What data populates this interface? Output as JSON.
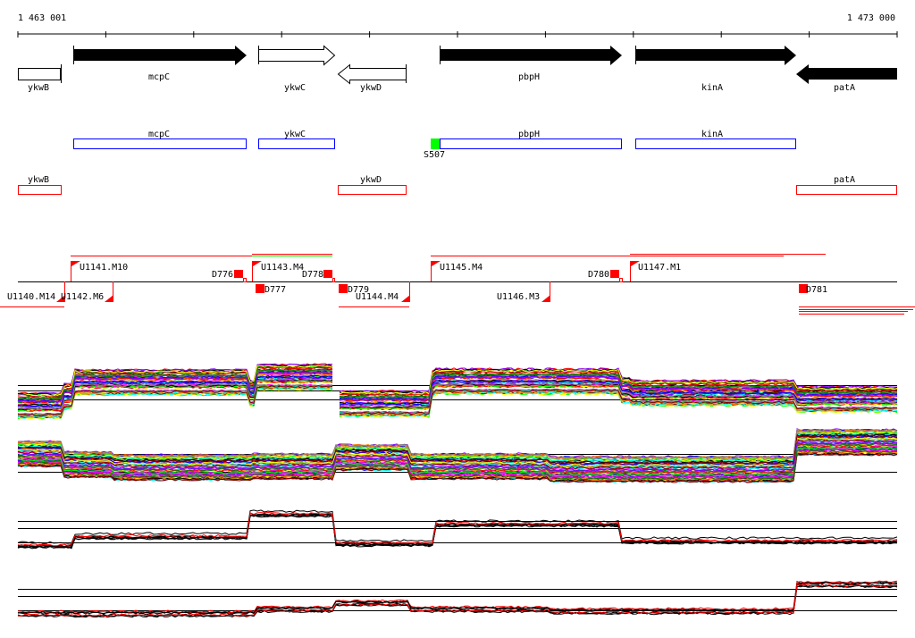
{
  "ruler": {
    "start_label": "1 463 001",
    "end_label": "1 473 000"
  },
  "genes": [
    {
      "name": "ykwB",
      "strand": "none"
    },
    {
      "name": "mcpC",
      "strand": "+"
    },
    {
      "name": "ykwC",
      "strand": "+"
    },
    {
      "name": "ykwD",
      "strand": "-"
    },
    {
      "name": "pbpH",
      "strand": "+"
    },
    {
      "name": "kinA",
      "strand": "+"
    },
    {
      "name": "patA",
      "strand": "-"
    }
  ],
  "blue_features": [
    "mcpC",
    "ykwC",
    "pbpH",
    "kinA"
  ],
  "green_feature": {
    "label": "S507",
    "color": "#00ff00"
  },
  "red_features": [
    "ykwB",
    "ykwD",
    "patA"
  ],
  "upshifts": [
    "U1140.M14",
    "U1141.M10",
    "U1142.M6",
    "U1143.M4",
    "U1144.M4",
    "U1145.M4",
    "U1146.M3",
    "U1147.M1"
  ],
  "downshifts": [
    "D776",
    "D777",
    "D778",
    "D779",
    "D780",
    "D781"
  ],
  "colors": {
    "accent_red": "#ff0000",
    "blue": "#0000ff",
    "green": "#00ff00"
  }
}
